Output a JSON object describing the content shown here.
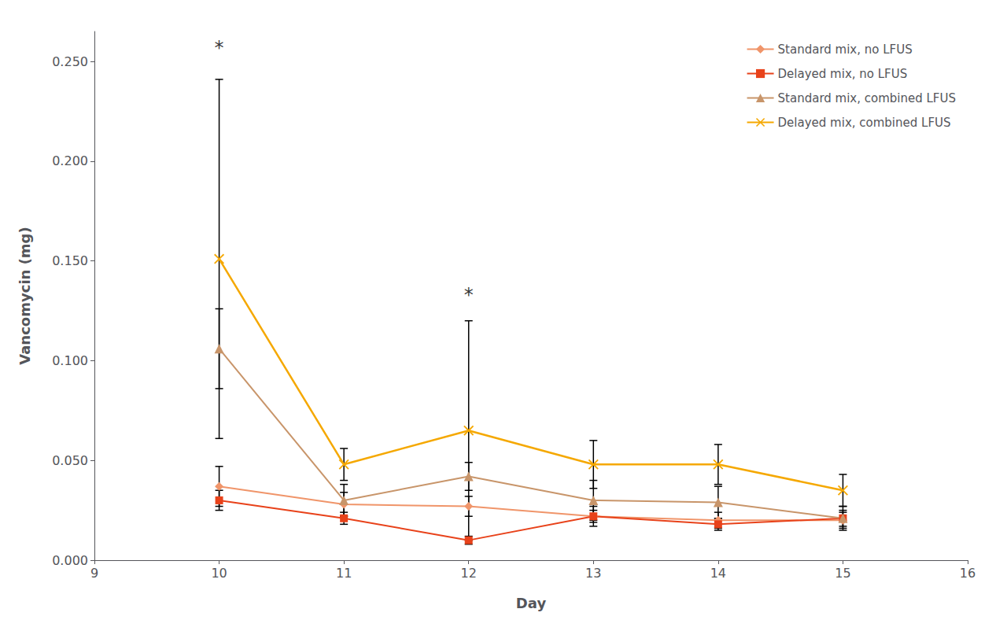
{
  "chart_data": {
    "type": "line",
    "x": [
      10,
      11,
      12,
      13,
      14,
      15
    ],
    "series": [
      {
        "name": "Standard mix, no LFUS",
        "color": "#F0956A",
        "marker": "diamond",
        "values": [
          0.037,
          0.028,
          0.027,
          0.022,
          0.02,
          0.02
        ],
        "errors": [
          0.01,
          0.006,
          0.005,
          0.005,
          0.004,
          0.004
        ]
      },
      {
        "name": "Delayed mix, no LFUS",
        "color": "#E8421A",
        "marker": "square",
        "values": [
          0.03,
          0.021,
          0.01,
          0.022,
          0.018,
          0.021
        ],
        "errors": [
          0.005,
          0.003,
          0.002,
          0.003,
          0.003,
          0.004
        ]
      },
      {
        "name": "Standard mix, combined LFUS",
        "color": "#C8956A",
        "marker": "triangle",
        "values": [
          0.106,
          0.03,
          0.042,
          0.03,
          0.029,
          0.021
        ],
        "errors": [
          0.02,
          0.008,
          0.007,
          0.01,
          0.008,
          0.006
        ]
      },
      {
        "name": "Delayed mix, combined LFUS",
        "color": "#F5A800",
        "marker": "x",
        "values": [
          0.151,
          0.048,
          0.065,
          0.048,
          0.048,
          0.035
        ],
        "errors": [
          0.09,
          0.008,
          0.055,
          0.012,
          0.01,
          0.008
        ]
      }
    ],
    "errorbar_color": "black",
    "xlabel": "Day",
    "ylabel": "Vancomycin (mg)",
    "xlim": [
      9,
      16
    ],
    "ylim": [
      0,
      0.265
    ],
    "xticks": [
      9,
      10,
      11,
      12,
      13,
      14,
      15,
      16
    ],
    "yticks": [
      {
        "value": 0.0,
        "label": "0.000"
      },
      {
        "value": 0.05,
        "label": "0.050"
      },
      {
        "value": 0.1,
        "label": "0.100"
      },
      {
        "value": 0.15,
        "label": "0.150"
      },
      {
        "value": 0.2,
        "label": "0.200"
      },
      {
        "value": 0.25,
        "label": "0.250"
      }
    ],
    "annotations": [
      {
        "x": 10,
        "y": 0.252,
        "text": "*"
      },
      {
        "x": 12,
        "y": 0.128,
        "text": "*"
      }
    ],
    "grid": false,
    "legend": "upper right"
  }
}
